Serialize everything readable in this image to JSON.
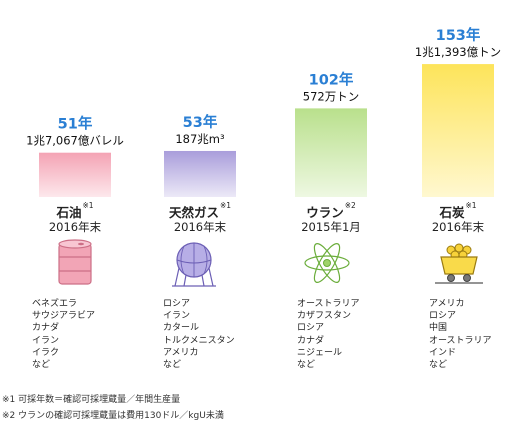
{
  "chart_data": {
    "type": "bar",
    "value_unit": "年",
    "categories": [
      "石油",
      "天然ガス",
      "ウラン",
      "石炭"
    ],
    "values": [
      51,
      53,
      102,
      153
    ],
    "ylim": [
      0,
      160
    ],
    "bars": [
      {
        "value_label": "51年",
        "reserve": "1兆7,067億バレル",
        "name": "石油",
        "note": "※1",
        "date": "2016年末",
        "icon": "oil-drum-icon",
        "color_top": "#f4a3b4",
        "color_bottom": "#fde8ec",
        "countries": [
          "ベネズエラ",
          "サウジアラビア",
          "カナダ",
          "イラン",
          "イラク",
          "など"
        ]
      },
      {
        "value_label": "53年",
        "reserve": "187兆m³",
        "name": "天然ガス",
        "note": "※1",
        "date": "2016年末",
        "icon": "gas-tank-icon",
        "color_top": "#a99ddb",
        "color_bottom": "#ece9f7",
        "countries": [
          "ロシア",
          "イラン",
          "カタール",
          "トルクメニスタン",
          "アメリカ",
          "など"
        ]
      },
      {
        "value_label": "102年",
        "reserve": "572万トン",
        "name": "ウラン",
        "note": "※2",
        "date": "2015年1月",
        "icon": "atom-icon",
        "color_top": "#b9e08c",
        "color_bottom": "#eef8e2",
        "countries": [
          "オーストラリア",
          "カザフスタン",
          "ロシア",
          "カナダ",
          "ニジェール",
          "など"
        ]
      },
      {
        "value_label": "153年",
        "reserve": "1兆1,393億トン",
        "name": "石炭",
        "note": "※1",
        "date": "2016年末",
        "icon": "coal-cart-icon",
        "color_top": "#fde45a",
        "color_bottom": "#fff8d0",
        "countries": [
          "アメリカ",
          "ロシア",
          "中国",
          "オーストラリア",
          "インド",
          "など"
        ]
      }
    ],
    "title": "",
    "xlabel": "",
    "ylabel": "",
    "grid": false,
    "legend": "none"
  },
  "colors": {
    "value_label": "#2a7fd4",
    "reserve_text": "#111111"
  },
  "footnotes": [
    "※1 可採年数＝確認可採埋蔵量／年間生産量",
    "※2 ウランの確認可採埋蔵量は費用130ドル／kgU未満"
  ]
}
